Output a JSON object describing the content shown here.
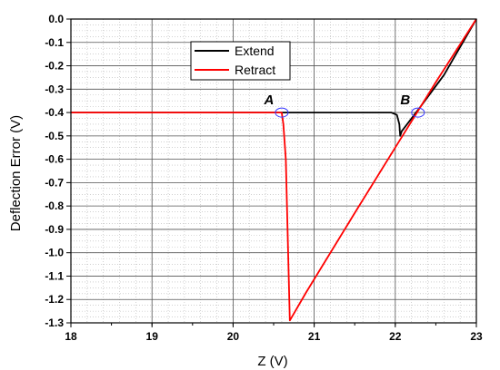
{
  "chart_data": {
    "type": "line",
    "xlabel": "Z (V)",
    "ylabel": "Deflection Error (V)",
    "xlim": [
      18,
      23
    ],
    "ylim": [
      -1.3,
      0.0
    ],
    "x_ticks": [
      18,
      19,
      20,
      21,
      22,
      23
    ],
    "x_tick_labels": [
      "18",
      "19",
      "20",
      "21",
      "22",
      "23"
    ],
    "y_ticks": [
      0.0,
      -0.1,
      -0.2,
      -0.3,
      -0.4,
      -0.5,
      -0.6,
      -0.7,
      -0.8,
      -0.9,
      -1.0,
      -1.1,
      -1.2,
      -1.3
    ],
    "y_tick_labels": [
      "0.0",
      "-0.1",
      "-0.2",
      "-0.3",
      "-0.4",
      "-0.5",
      "-0.6",
      "-0.7",
      "-0.8",
      "-0.9",
      "-1.0",
      "-1.1",
      "-1.2",
      "-1.3"
    ],
    "grid": true,
    "minor_grid": true,
    "legend_position": "top-left",
    "series": [
      {
        "name": "Extend",
        "color": "#000000",
        "x": [
          18.0,
          21.95,
          22.02,
          22.05,
          22.06,
          22.06,
          22.08,
          22.3,
          22.6,
          23.0
        ],
        "y": [
          -0.4,
          -0.4,
          -0.41,
          -0.45,
          -0.5,
          -0.5,
          -0.48,
          -0.38,
          -0.24,
          0.0
        ]
      },
      {
        "name": "Retract",
        "color": "#ff0000",
        "x": [
          18.0,
          20.6,
          20.62,
          20.65,
          20.7,
          20.9,
          21.5,
          22.0,
          22.5,
          23.0
        ],
        "y": [
          -0.4,
          -0.4,
          -0.45,
          -0.6,
          -1.29,
          -1.17,
          -0.83,
          -0.55,
          -0.27,
          0.0
        ]
      }
    ],
    "annotations": [
      {
        "label": "A",
        "x": 20.6,
        "y": -0.4,
        "color": "#3a3aff"
      },
      {
        "label": "B",
        "x": 22.28,
        "y": -0.4,
        "color": "#3a3aff"
      }
    ]
  }
}
